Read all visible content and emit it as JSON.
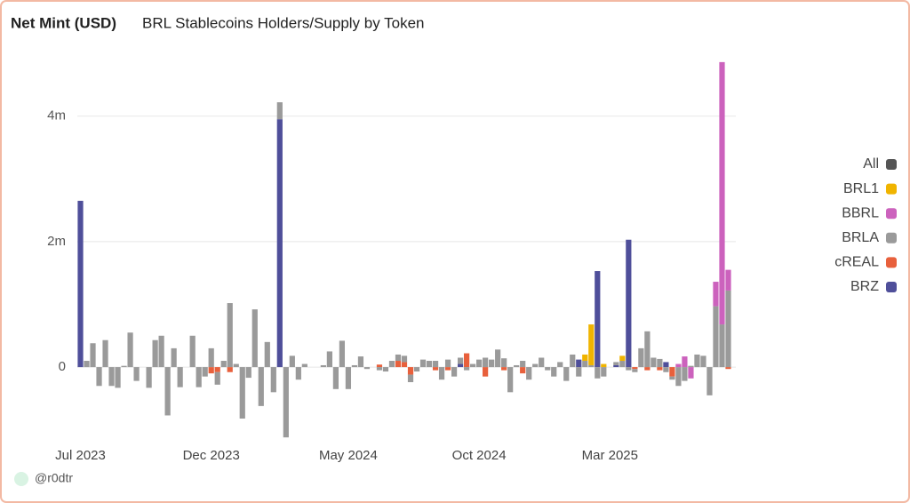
{
  "chart_data": {
    "type": "stacked-bar",
    "title": "Net Mint (USD)",
    "subtitle": "BRL Stablecoins Holders/Supply by Token",
    "footer": "@r0dtr",
    "categories": [
      "Jul 2023",
      null,
      null,
      null,
      null,
      null,
      null,
      null,
      null,
      null,
      null,
      null,
      null,
      null,
      null,
      null,
      null,
      null,
      null,
      null,
      null,
      "Dec 2023",
      null,
      null,
      null,
      null,
      null,
      null,
      null,
      null,
      null,
      null,
      null,
      null,
      null,
      null,
      null,
      null,
      null,
      null,
      null,
      null,
      null,
      "May 2024",
      null,
      null,
      null,
      null,
      null,
      null,
      null,
      null,
      null,
      null,
      null,
      null,
      null,
      null,
      null,
      null,
      null,
      null,
      null,
      null,
      "Oct 2024",
      null,
      null,
      null,
      null,
      null,
      null,
      null,
      null,
      null,
      null,
      null,
      null,
      null,
      null,
      null,
      null,
      null,
      null,
      null,
      null,
      "Mar 2025",
      null,
      null,
      null,
      null,
      null,
      null,
      null,
      null,
      null,
      null,
      null,
      null,
      null,
      null,
      null,
      null,
      null,
      null,
      null
    ],
    "series": [
      {
        "name": "BRZ",
        "color": "#4f4f9a",
        "values": [
          2650000,
          null,
          null,
          null,
          null,
          null,
          null,
          null,
          null,
          null,
          null,
          null,
          null,
          null,
          null,
          null,
          null,
          null,
          null,
          null,
          null,
          null,
          null,
          null,
          null,
          null,
          null,
          null,
          null,
          null,
          null,
          null,
          3950000,
          null,
          null,
          null,
          null,
          null,
          null,
          null,
          null,
          null,
          null,
          null,
          null,
          null,
          null,
          null,
          null,
          null,
          null,
          null,
          null,
          null,
          null,
          null,
          null,
          null,
          null,
          null,
          null,
          50000,
          null,
          null,
          null,
          null,
          null,
          null,
          null,
          null,
          null,
          null,
          null,
          null,
          null,
          null,
          null,
          null,
          null,
          null,
          120000,
          null,
          null,
          1530000,
          null,
          null,
          30000,
          null,
          2030000,
          null,
          null,
          null,
          null,
          null,
          80000,
          null,
          null,
          null,
          null,
          null,
          null,
          null,
          null,
          null,
          null
        ]
      },
      {
        "name": "cREAL",
        "color": "#e8603c",
        "values": [
          null,
          null,
          null,
          null,
          null,
          null,
          null,
          null,
          null,
          null,
          null,
          null,
          null,
          null,
          null,
          null,
          null,
          null,
          null,
          null,
          null,
          -100000,
          -80000,
          null,
          -80000,
          null,
          null,
          null,
          null,
          null,
          null,
          null,
          null,
          null,
          null,
          null,
          null,
          null,
          null,
          null,
          null,
          null,
          null,
          null,
          null,
          null,
          null,
          null,
          40000,
          null,
          null,
          100000,
          80000,
          -120000,
          null,
          null,
          null,
          -50000,
          null,
          -50000,
          null,
          null,
          220000,
          null,
          null,
          -150000,
          null,
          null,
          -50000,
          null,
          null,
          -100000,
          null,
          null,
          null,
          null,
          null,
          null,
          null,
          null,
          null,
          null,
          null,
          null,
          null,
          null,
          null,
          null,
          null,
          -30000,
          null,
          -50000,
          null,
          -50000,
          null,
          -150000,
          null,
          null,
          null,
          null,
          null,
          null,
          null,
          null,
          -30000
        ]
      },
      {
        "name": "BRLA",
        "color": "#9a9a9a",
        "values": [
          null,
          100000,
          380000,
          -300000,
          430000,
          -300000,
          -330000,
          20000,
          550000,
          -220000,
          null,
          -330000,
          430000,
          500000,
          -770000,
          300000,
          -320000,
          null,
          500000,
          -320000,
          -150000,
          300000,
          -200000,
          100000,
          1020000,
          50000,
          -820000,
          -170000,
          920000,
          -620000,
          400000,
          -400000,
          270000,
          -1120000,
          180000,
          -200000,
          50000,
          null,
          null,
          30000,
          250000,
          -350000,
          420000,
          -350000,
          30000,
          170000,
          -30000,
          null,
          -50000,
          -70000,
          100000,
          100000,
          100000,
          -120000,
          -70000,
          120000,
          100000,
          100000,
          -200000,
          120000,
          -150000,
          100000,
          -50000,
          50000,
          120000,
          150000,
          120000,
          280000,
          140000,
          -400000,
          30000,
          100000,
          -200000,
          50000,
          150000,
          -50000,
          -150000,
          80000,
          -220000,
          200000,
          -150000,
          100000,
          30000,
          -180000,
          -150000,
          null,
          50000,
          100000,
          -50000,
          -50000,
          300000,
          570000,
          150000,
          130000,
          -80000,
          -50000,
          -300000,
          -220000,
          20000,
          200000,
          180000,
          -450000,
          970000,
          680000,
          1220000
        ]
      },
      {
        "name": "BBRL",
        "color": "#cc62bd",
        "values": [
          null,
          null,
          null,
          null,
          null,
          null,
          null,
          null,
          null,
          null,
          null,
          null,
          null,
          null,
          null,
          null,
          null,
          null,
          null,
          null,
          null,
          null,
          null,
          null,
          null,
          null,
          null,
          null,
          null,
          null,
          null,
          null,
          null,
          null,
          null,
          null,
          null,
          null,
          null,
          null,
          null,
          null,
          null,
          null,
          null,
          null,
          null,
          null,
          null,
          null,
          null,
          null,
          null,
          null,
          null,
          null,
          null,
          null,
          null,
          null,
          null,
          null,
          null,
          null,
          null,
          null,
          null,
          null,
          null,
          null,
          null,
          null,
          null,
          null,
          null,
          null,
          null,
          null,
          null,
          null,
          null,
          null,
          null,
          null,
          null,
          null,
          null,
          null,
          null,
          null,
          null,
          null,
          null,
          null,
          null,
          null,
          50000,
          170000,
          -180000,
          null,
          null,
          null,
          390000,
          4180000,
          330000
        ]
      },
      {
        "name": "BRL1",
        "color": "#f0b400",
        "values": [
          null,
          null,
          null,
          null,
          null,
          null,
          null,
          null,
          null,
          null,
          null,
          null,
          null,
          null,
          null,
          null,
          null,
          null,
          null,
          null,
          null,
          null,
          null,
          null,
          null,
          null,
          null,
          null,
          null,
          null,
          null,
          null,
          null,
          null,
          null,
          null,
          null,
          null,
          null,
          null,
          null,
          null,
          null,
          null,
          null,
          null,
          null,
          null,
          null,
          null,
          null,
          null,
          null,
          null,
          null,
          null,
          null,
          null,
          null,
          null,
          null,
          null,
          null,
          null,
          null,
          null,
          null,
          null,
          null,
          null,
          null,
          null,
          null,
          null,
          null,
          null,
          null,
          null,
          null,
          null,
          null,
          100000,
          650000,
          null,
          50000,
          null,
          null,
          80000,
          null,
          null,
          null,
          null,
          null,
          null,
          null,
          null,
          null,
          null,
          null,
          null,
          null,
          null,
          null,
          null,
          null
        ]
      },
      {
        "name": "All",
        "color": "#555555",
        "values": [
          null,
          null,
          null,
          null,
          null,
          null,
          null,
          null,
          null,
          null,
          null,
          null,
          null,
          null,
          null,
          null,
          null,
          null,
          null,
          null,
          null,
          null,
          null,
          null,
          null,
          null,
          null,
          null,
          null,
          null,
          null,
          null,
          null,
          null,
          null,
          null,
          null,
          null,
          null,
          null,
          null,
          null,
          null,
          null,
          null,
          null,
          null,
          null,
          null,
          null,
          null,
          null,
          null,
          null,
          null,
          null,
          null,
          null,
          null,
          null,
          null,
          null,
          null,
          null,
          null,
          null,
          null,
          null,
          null,
          null,
          null,
          null,
          null,
          null,
          null,
          null,
          null,
          null,
          null,
          null,
          null,
          null,
          null,
          null,
          null,
          null,
          null,
          null,
          null,
          null,
          null,
          null,
          null,
          null,
          null,
          null,
          null,
          null,
          null,
          null,
          null,
          null,
          null,
          null,
          null
        ]
      }
    ],
    "ylim": [
      -1160000,
      5000000
    ],
    "yticks": [
      0,
      {
        "value": 2000000,
        "label": "2m"
      },
      {
        "value": 4000000,
        "label": "4m"
      }
    ],
    "grid": true,
    "legend": "right"
  }
}
